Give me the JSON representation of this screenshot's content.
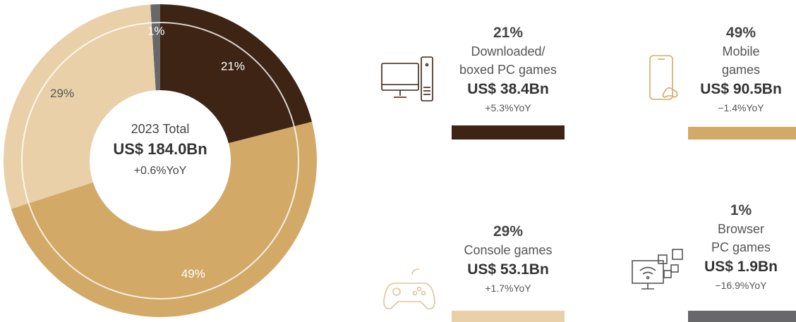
{
  "chart_data": {
    "type": "pie",
    "center_title": "2023 Total",
    "center_value": "US$ 184.0Bn",
    "center_yoy": "+0.6%YoY",
    "categories": [
      "Downloaded/ boxed PC games",
      "Mobile games",
      "Console games",
      "Browser PC games"
    ],
    "values": [
      21,
      49,
      29,
      1
    ],
    "value_labels": [
      "21%",
      "49%",
      "29%",
      "1%"
    ],
    "colors": [
      "#3d2415",
      "#d3a968",
      "#e9d0a8",
      "#68686a"
    ],
    "label_colors": [
      "#ffffff",
      "#ffffff",
      "#555555",
      "#ffffff"
    ],
    "revenue_labels": [
      "US$ 38.4Bn",
      "US$ 90.5Bn",
      "US$ 53.1Bn",
      "US$ 1.9Bn"
    ],
    "yoy_labels": [
      "+5.3%YoY",
      "−1.4%YoY",
      "+1.7%YoY",
      "−16.9%YoY"
    ]
  }
}
